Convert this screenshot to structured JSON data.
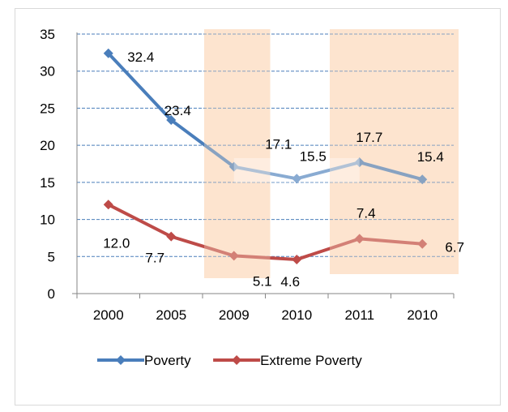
{
  "chart_data": {
    "type": "line",
    "categories": [
      "2000",
      "2005",
      "2009",
      "2010",
      "2011",
      "2010"
    ],
    "series": [
      {
        "name": "Poverty",
        "values": [
          32.4,
          23.4,
          17.1,
          15.5,
          17.7,
          15.4
        ],
        "labels": [
          "32.4",
          "23.4",
          "17.1",
          "15.5",
          "17.7",
          "15.4"
        ],
        "color": "#4a7ebb"
      },
      {
        "name": "Extreme Poverty",
        "values": [
          12.0,
          7.7,
          5.1,
          4.6,
          7.4,
          6.7
        ],
        "labels": [
          "12.0",
          "7.7",
          "5.1",
          "4.6",
          "7.4",
          "6.7"
        ],
        "color": "#be4b48"
      }
    ],
    "highlight_bands": [
      {
        "from_category": 2,
        "to_category": 2,
        "color": "#fde4cf"
      },
      {
        "from_category": 4,
        "to_category": 5,
        "color": "#fde4cf"
      }
    ],
    "y_ticks": [
      "0",
      "5",
      "10",
      "15",
      "20",
      "25",
      "30",
      "35"
    ],
    "ylim": [
      0,
      35
    ],
    "grid": true,
    "legend_position": "bottom",
    "title": "",
    "xlabel": "",
    "ylabel": ""
  }
}
